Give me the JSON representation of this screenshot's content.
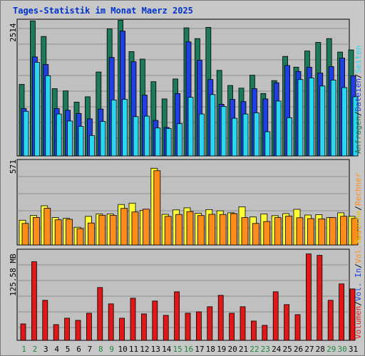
{
  "title": "Tages-Statistik im Monat Maerz 2025",
  "colors": {
    "anfragen": "#1a7a5a",
    "dateien": "#1f3fe0",
    "seiten": "#27d8f0",
    "besuche": "#ffff33",
    "rechner": "#ff8c1a",
    "volumen": "#e01818",
    "weekday_label": "#000000",
    "weekend_label": "#1a8a3a"
  },
  "right_labels": {
    "anfragen": "Anfragen",
    "dateien": "Dateien",
    "seiten": "Seiten",
    "besuche": "Besuche",
    "rechner": "Rechner",
    "vol_out": "Vol. Out",
    "vol_in": "Vol. In",
    "volumen": "Volumen",
    "sep": "/"
  },
  "chart_data": [
    {
      "type": "bar",
      "panel": "top",
      "ymax_label": "2514",
      "ylim": [
        0,
        2514
      ],
      "categories": [
        "1",
        "2",
        "3",
        "4",
        "5",
        "6",
        "7",
        "8",
        "9",
        "10",
        "11",
        "12",
        "13",
        "14",
        "15",
        "16",
        "17",
        "18",
        "19",
        "20",
        "21",
        "22",
        "23",
        "24",
        "25",
        "26",
        "27",
        "28",
        "29",
        "30",
        "31"
      ],
      "series": [
        {
          "name": "Anfragen",
          "values": [
            1330,
            2510,
            2220,
            1250,
            1210,
            1000,
            1100,
            1560,
            2360,
            2520,
            1940,
            1800,
            1380,
            1060,
            1430,
            2380,
            2180,
            2390,
            1590,
            1310,
            1260,
            1500,
            1160,
            1400,
            1850,
            1650,
            1950,
            2110,
            2180,
            1930,
            1970
          ]
        },
        {
          "name": "Dateien",
          "values": [
            880,
            1840,
            1700,
            880,
            850,
            790,
            690,
            870,
            1830,
            2320,
            1750,
            1130,
            660,
            530,
            1160,
            2120,
            1780,
            1420,
            960,
            1050,
            1010,
            1250,
            1060,
            1360,
            1680,
            1570,
            1650,
            1540,
            1660,
            1820,
            1490
          ]
        },
        {
          "name": "Seiten",
          "values": [
            830,
            1740,
            1490,
            780,
            650,
            550,
            380,
            640,
            1040,
            1050,
            730,
            740,
            520,
            510,
            600,
            1090,
            780,
            1140,
            920,
            700,
            780,
            800,
            450,
            1020,
            710,
            1420,
            1450,
            1300,
            1410,
            1270,
            1100
          ]
        }
      ],
      "weekend_days": [
        "1",
        "2",
        "8",
        "9",
        "15",
        "16",
        "22",
        "23",
        "29",
        "30"
      ]
    },
    {
      "type": "bar",
      "panel": "middle",
      "ymax_label": "571",
      "ylim": [
        0,
        571
      ],
      "categories": [
        "1",
        "2",
        "3",
        "4",
        "5",
        "6",
        "7",
        "8",
        "9",
        "10",
        "11",
        "12",
        "13",
        "14",
        "15",
        "16",
        "17",
        "18",
        "19",
        "20",
        "21",
        "22",
        "23",
        "24",
        "25",
        "26",
        "27",
        "28",
        "29",
        "30",
        "31"
      ],
      "series": [
        {
          "name": "Besuche",
          "values": [
            168,
            200,
            266,
            186,
            181,
            120,
            194,
            211,
            211,
            275,
            284,
            234,
            521,
            208,
            238,
            252,
            215,
            240,
            232,
            218,
            259,
            190,
            211,
            199,
            213,
            242,
            203,
            206,
            186,
            218,
            194
          ]
        },
        {
          "name": "Rechner",
          "values": [
            146,
            187,
            249,
            171,
            174,
            111,
            149,
            202,
            201,
            248,
            224,
            243,
            504,
            194,
            207,
            227,
            200,
            208,
            207,
            213,
            186,
            146,
            159,
            186,
            196,
            185,
            179,
            177,
            186,
            195,
            180
          ]
        }
      ]
    },
    {
      "type": "bar",
      "panel": "bottom",
      "ymax_label": "125.58 MB",
      "ylim": [
        0,
        125.58
      ],
      "categories": [
        "1",
        "2",
        "3",
        "4",
        "5",
        "6",
        "7",
        "8",
        "9",
        "10",
        "11",
        "12",
        "13",
        "14",
        "15",
        "16",
        "17",
        "18",
        "19",
        "20",
        "21",
        "22",
        "23",
        "24",
        "25",
        "26",
        "27",
        "28",
        "29",
        "30",
        "31"
      ],
      "series": [
        {
          "name": "Volumen",
          "values": [
            23,
            110,
            56,
            22,
            31,
            28,
            38,
            74,
            51,
            31,
            59,
            37,
            55,
            35,
            68,
            38,
            40,
            47,
            63,
            38,
            47,
            27,
            21,
            68,
            50,
            36,
            121,
            119,
            56,
            79,
            72
          ]
        }
      ]
    }
  ]
}
